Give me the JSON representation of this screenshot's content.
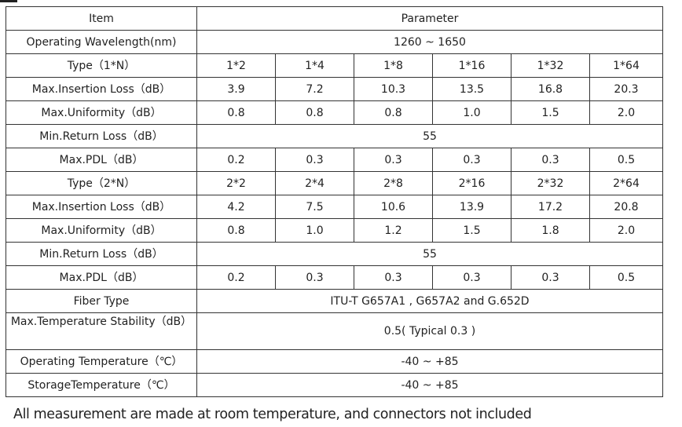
{
  "header": {
    "item": "Item",
    "parameter": "Parameter"
  },
  "wavelength": {
    "label": "Operating Wavelength(nm)",
    "value": "1260 ~ 1650"
  },
  "type1": {
    "label": "Type（1*N）",
    "values": [
      "1*2",
      "1*4",
      "1*8",
      "1*16",
      "1*32",
      "1*64"
    ]
  },
  "il1": {
    "label": "Max.Insertion Loss（dB）",
    "values": [
      "3.9",
      "7.2",
      "10.3",
      "13.5",
      "16.8",
      "20.3"
    ]
  },
  "uni1": {
    "label": "Max.Uniformity（dB）",
    "values": [
      "0.8",
      "0.8",
      "0.8",
      "1.0",
      "1.5",
      "2.0"
    ]
  },
  "rl1": {
    "label": "Min.Return Loss（dB）",
    "value": "55"
  },
  "pdl1": {
    "label": "Max.PDL（dB）",
    "values": [
      "0.2",
      "0.3",
      "0.3",
      "0.3",
      "0.3",
      "0.5"
    ]
  },
  "type2": {
    "label": "Type（2*N）",
    "values": [
      "2*2",
      "2*4",
      "2*8",
      "2*16",
      "2*32",
      "2*64"
    ]
  },
  "il2": {
    "label": "Max.Insertion Loss（dB）",
    "values": [
      "4.2",
      "7.5",
      "10.6",
      "13.9",
      "17.2",
      "20.8"
    ]
  },
  "uni2": {
    "label": "Max.Uniformity（dB）",
    "values": [
      "0.8",
      "1.0",
      "1.2",
      "1.5",
      "1.8",
      "2.0"
    ]
  },
  "rl2": {
    "label": "Min.Return Loss（dB）",
    "value": "55"
  },
  "pdl2": {
    "label": "Max.PDL（dB）",
    "values": [
      "0.2",
      "0.3",
      "0.3",
      "0.3",
      "0.3",
      "0.5"
    ]
  },
  "fiber": {
    "label": "Fiber Type",
    "value": "ITU-T G657A1 , G657A2 and G.652D"
  },
  "tempstab": {
    "label": "Max.Temperature Stability（dB）",
    "value": "0.5( Typical 0.3 )"
  },
  "optemp": {
    "label": "Operating Temperature（℃）",
    "value": "-40 ~ +85"
  },
  "sttemp": {
    "label": "StorageTemperature（℃）",
    "value": "-40 ~ +85"
  },
  "footnote": "All measurement are made at room temperature, and connectors not included"
}
